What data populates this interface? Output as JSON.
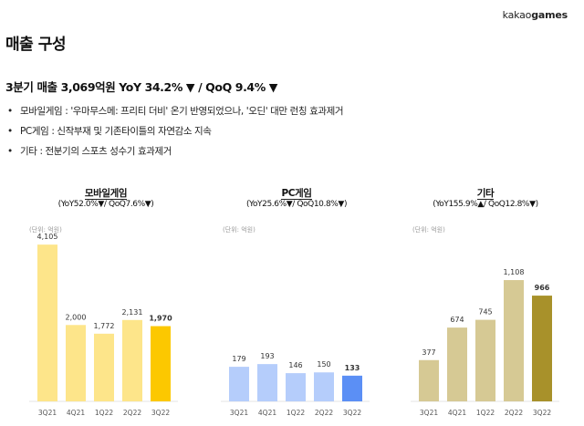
{
  "logo": {
    "part1": "kakao",
    "part2": "games"
  },
  "title": "매출 구성",
  "headline": "3분기 매출 3,069억원 YoY 34.2% ▼ / QoQ 9.4% ▼",
  "bullets": [
    "모바일게임 : '우마무스메: 프리티 더비' 온기 반영되었으나, '오딘' 대만 런칭 효과제거",
    "PC게임 : 신작부재 및 기존타이틀의 자연감소 지속",
    "기타 : 전분기의 스포츠 성수기 효과제거"
  ],
  "chart_data": [
    {
      "type": "bar",
      "title": "모바일게임",
      "subtitle": "(YoY52.0%▼/ QoQ7.6%▼)",
      "unit_label": "(단위: 억원)",
      "categories": [
        "3Q21",
        "4Q21",
        "1Q22",
        "2Q22",
        "3Q22"
      ],
      "values": [
        4105,
        2000,
        1772,
        2131,
        1970
      ],
      "value_labels": [
        "4,105",
        "2,000",
        "1,772",
        "2,131",
        "1,970"
      ],
      "ylim": [
        0,
        4300
      ],
      "colors": [
        "#fde58a",
        "#fde58a",
        "#fde58a",
        "#fde58a",
        "#fcc800"
      ]
    },
    {
      "type": "bar",
      "title": "PC게임",
      "subtitle": "(YoY25.6%▼/ QoQ10.8%▼)",
      "unit_label": "(단위: 억원)",
      "categories": [
        "3Q21",
        "4Q21",
        "1Q22",
        "2Q22",
        "3Q22"
      ],
      "values": [
        179,
        193,
        146,
        150,
        133
      ],
      "value_labels": [
        "179",
        "193",
        "146",
        "150",
        "133"
      ],
      "ylim": [
        0,
        850
      ],
      "colors": [
        "#b5cdfb",
        "#b5cdfb",
        "#b5cdfb",
        "#b5cdfb",
        "#5b8ff5"
      ]
    },
    {
      "type": "bar",
      "title": "기타",
      "subtitle": "(YoY155.9%▲/ QoQ12.8%▼)",
      "unit_label": "(단위: 억원)",
      "categories": [
        "3Q21",
        "4Q21",
        "1Q22",
        "2Q22",
        "3Q22"
      ],
      "values": [
        377,
        674,
        745,
        1108,
        966
      ],
      "value_labels": [
        "377",
        "674",
        "745",
        "1,108",
        "966"
      ],
      "ylim": [
        0,
        1500
      ],
      "colors": [
        "#d6c994",
        "#d6c994",
        "#d6c994",
        "#d6c994",
        "#a8912a"
      ]
    }
  ]
}
